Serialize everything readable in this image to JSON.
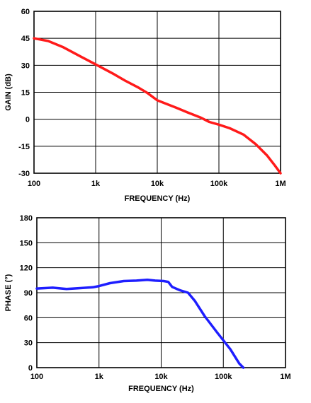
{
  "chart_data": [
    {
      "type": "line",
      "xscale": "log",
      "xlabel": "FREQUENCY (Hz)",
      "ylabel": "GAIN (dB)",
      "xlim": [
        100,
        1000000
      ],
      "ylim": [
        -30,
        60
      ],
      "grid": true,
      "x_ticks": [
        100,
        1000,
        10000,
        100000,
        1000000
      ],
      "x_tick_labels": [
        "100",
        "1k",
        "10k",
        "100k",
        "1M"
      ],
      "y_ticks": [
        60,
        45,
        30,
        15,
        0,
        -15,
        -30
      ],
      "y_tick_labels": [
        "60",
        "45",
        "30",
        "15",
        "0",
        "-15",
        "-30"
      ],
      "series": [
        {
          "color": "#ff1a1a",
          "x": [
            100,
            170,
            300,
            600,
            1000,
            2000,
            3000,
            5000,
            7000,
            10000,
            20000,
            30000,
            50000,
            70000,
            100000,
            150000,
            250000,
            400000,
            600000,
            800000,
            1000000
          ],
          "y": [
            45,
            43.5,
            40,
            34.5,
            30.5,
            25,
            21.5,
            17.5,
            14.5,
            10.5,
            6.5,
            4,
            1,
            -1.5,
            -3,
            -5,
            -8.5,
            -14,
            -20,
            -25.5,
            -30
          ]
        }
      ]
    },
    {
      "type": "line",
      "xscale": "log",
      "xlabel": "FREQUENCY (Hz)",
      "ylabel": "PHASE (°)",
      "xlim": [
        100,
        1000000
      ],
      "ylim": [
        0,
        180
      ],
      "grid": true,
      "x_ticks": [
        100,
        1000,
        10000,
        100000,
        1000000
      ],
      "x_tick_labels": [
        "100",
        "1k",
        "10k",
        "100k",
        "1M"
      ],
      "y_ticks": [
        180,
        150,
        120,
        90,
        60,
        30,
        0
      ],
      "y_tick_labels": [
        "180",
        "150",
        "120",
        "90",
        "60",
        "30",
        "0"
      ],
      "series": [
        {
          "color": "#1e1eff",
          "x": [
            100,
            180,
            300,
            500,
            800,
            1000,
            1500,
            2500,
            4000,
            6000,
            8000,
            11000,
            13000,
            15000,
            20000,
            27000,
            35000,
            50000,
            80000,
            130000,
            180000,
            210000
          ],
          "y": [
            95,
            96,
            94.5,
            95.5,
            96.5,
            98,
            101.5,
            104,
            104.5,
            105.5,
            104.5,
            104,
            103,
            97,
            93,
            90,
            80,
            62,
            42,
            22,
            5,
            0
          ]
        }
      ]
    }
  ]
}
